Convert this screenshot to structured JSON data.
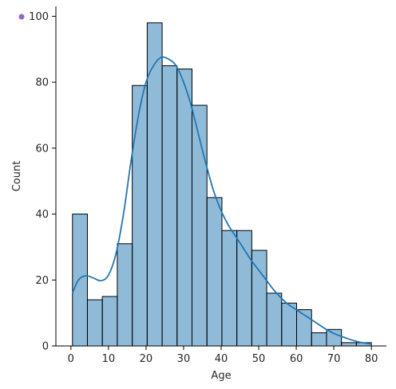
{
  "chart_data": {
    "type": "bar",
    "subtype": "histogram",
    "xlabel": "Age",
    "ylabel": "Count",
    "xlim": [
      -4,
      84
    ],
    "ylim": [
      0,
      103
    ],
    "xticks": [
      0,
      10,
      20,
      30,
      40,
      50,
      60,
      70,
      80
    ],
    "yticks": [
      0,
      20,
      40,
      60,
      80,
      100
    ],
    "bins": [
      {
        "x0": 0.42,
        "x1": 4.39,
        "count": 40
      },
      {
        "x0": 4.39,
        "x1": 8.37,
        "count": 14
      },
      {
        "x0": 8.37,
        "x1": 12.35,
        "count": 15
      },
      {
        "x0": 12.35,
        "x1": 16.33,
        "count": 31
      },
      {
        "x0": 16.33,
        "x1": 20.31,
        "count": 79
      },
      {
        "x0": 20.31,
        "x1": 24.29,
        "count": 98
      },
      {
        "x0": 24.29,
        "x1": 28.26,
        "count": 85
      },
      {
        "x0": 28.26,
        "x1": 32.24,
        "count": 84
      },
      {
        "x0": 32.24,
        "x1": 36.22,
        "count": 73
      },
      {
        "x0": 36.22,
        "x1": 40.2,
        "count": 45
      },
      {
        "x0": 40.2,
        "x1": 44.18,
        "count": 35
      },
      {
        "x0": 44.18,
        "x1": 48.16,
        "count": 35
      },
      {
        "x0": 48.16,
        "x1": 52.13,
        "count": 29
      },
      {
        "x0": 52.13,
        "x1": 56.11,
        "count": 16
      },
      {
        "x0": 56.11,
        "x1": 60.09,
        "count": 13
      },
      {
        "x0": 60.09,
        "x1": 64.07,
        "count": 11
      },
      {
        "x0": 64.07,
        "x1": 68.05,
        "count": 4
      },
      {
        "x0": 68.05,
        "x1": 72.03,
        "count": 5
      },
      {
        "x0": 72.03,
        "x1": 76.0,
        "count": 1
      },
      {
        "x0": 76.0,
        "x1": 80.0,
        "count": 1
      }
    ],
    "kde": {
      "x": [
        0.42,
        2,
        4,
        6,
        8,
        10,
        12,
        14,
        16,
        18,
        20,
        22,
        24,
        26,
        28,
        30,
        32,
        34,
        36,
        38,
        40,
        42,
        44,
        46,
        48,
        50,
        52,
        54,
        56,
        58,
        60,
        62,
        64,
        66,
        68,
        70,
        72,
        74,
        76,
        78,
        80
      ],
      "y": [
        16,
        20,
        21.3,
        20.6,
        19.8,
        21.5,
        28,
        40,
        56,
        70,
        80,
        85,
        87.5,
        87,
        85,
        80,
        73,
        64,
        55,
        47,
        41,
        36.5,
        33,
        29.5,
        26,
        23,
        20,
        17,
        14.5,
        12.5,
        11,
        9.5,
        8,
        6.5,
        5,
        3.8,
        2.9,
        2.1,
        1.4,
        0.9,
        0.6
      ]
    },
    "bar_color": "#1f77b4",
    "bar_opacity": 0.5,
    "kde_color": "#1f77b4",
    "edge_color": "#000000",
    "grid": false,
    "legend": "none",
    "marker_color": "#9467bd"
  }
}
